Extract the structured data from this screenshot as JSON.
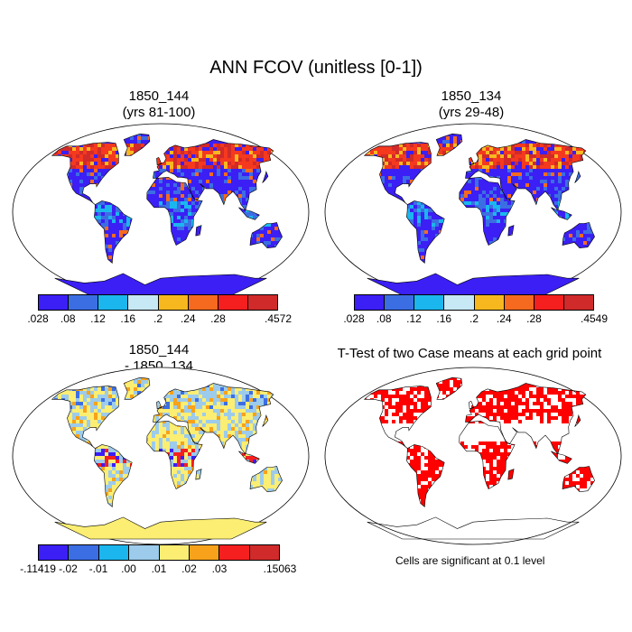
{
  "title": "ANN FCOV (unitless [0-1])",
  "panels": [
    {
      "id": "p1",
      "title_line1": "1850_144",
      "title_line2": "(yrs 81-100)",
      "colorbar": {
        "colors": [
          "#3b1ff5",
          "#3c6ee3",
          "#1bb6ee",
          "#c7e8f5",
          "#f7b81f",
          "#f56a1f",
          "#f51f1f",
          "#d02a2a"
        ],
        "labels": [
          ".028",
          ".08",
          ".12",
          ".16",
          ".2",
          ".24",
          ".28",
          ".4572"
        ]
      }
    },
    {
      "id": "p2",
      "title_line1": "1850_134",
      "title_line2": "(yrs 29-48)",
      "colorbar": {
        "colors": [
          "#3b1ff5",
          "#3c6ee3",
          "#1bb6ee",
          "#c7e8f5",
          "#f7b81f",
          "#f56a1f",
          "#f51f1f",
          "#d02a2a"
        ],
        "labels": [
          ".028",
          ".08",
          ".12",
          ".16",
          ".2",
          ".24",
          ".28",
          ".4549"
        ]
      }
    },
    {
      "id": "p3",
      "title_line1": "1850_144",
      "title_line2": "- 1850_134",
      "colorbar": {
        "colors": [
          "#3b1ff5",
          "#3c6ee3",
          "#1bb6ee",
          "#9ccbeb",
          "#fbee73",
          "#f7a21a",
          "#f51f1f",
          "#d02a2a"
        ],
        "labels": [
          "-.11419",
          "-.02",
          "-.01",
          ".00",
          ".01",
          ".02",
          ".03",
          ".15063"
        ]
      }
    },
    {
      "id": "p4",
      "title_line1": "T-Test of two Case means at each grid point",
      "note": "Cells are significant at 0.1 level",
      "sig_color": "#ff0000"
    }
  ]
}
